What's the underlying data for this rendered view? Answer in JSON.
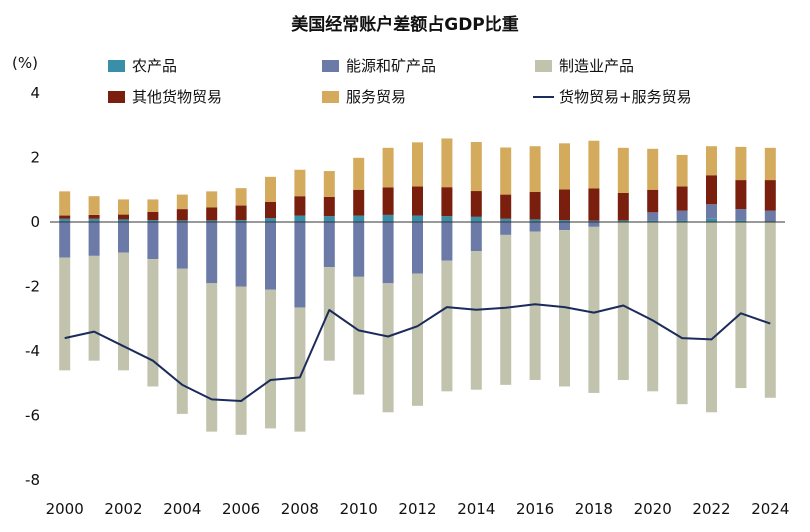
{
  "chart_data": {
    "type": "bar",
    "stacked": true,
    "title": "美国经常账户差额占GDP比重",
    "ylabel": "(%)",
    "xlabel": "",
    "ylim": [
      -8,
      4
    ],
    "yticks": [
      4,
      2,
      0,
      -2,
      -4,
      -6,
      -8
    ],
    "ytick_labels": [
      "4",
      "2",
      "0",
      "-2",
      "-4",
      "-6",
      "-8"
    ],
    "x_tick_labels": [
      "2000",
      "2002",
      "2004",
      "2006",
      "2008",
      "2010",
      "2012",
      "2014",
      "2016",
      "2018",
      "2020",
      "2022",
      "2024"
    ],
    "categories": [
      "2000",
      "2001",
      "2002",
      "2003",
      "2004",
      "2005",
      "2006",
      "2007",
      "2008",
      "2009",
      "2010",
      "2011",
      "2012",
      "2013",
      "2014",
      "2015",
      "2016",
      "2017",
      "2018",
      "2019",
      "2020",
      "2021",
      "2022",
      "2023",
      "2024"
    ],
    "legend": [
      {
        "name": "农产品",
        "color": "#3a8fa8"
      },
      {
        "name": "能源和矿产品",
        "color": "#6c7aa8"
      },
      {
        "name": "制造业产品",
        "color": "#c2c3ad"
      },
      {
        "name": "其他货物贸易",
        "color": "#7a1f0e"
      },
      {
        "name": "服务贸易",
        "color": "#d4aa5c"
      },
      {
        "name": "货物贸易+服务贸易",
        "color": "#1b2b5c"
      }
    ],
    "series": [
      {
        "name": "农产品",
        "kind": "bar",
        "color": "#3a8fa8",
        "values": [
          0.1,
          0.1,
          0.08,
          0.06,
          0.05,
          0.05,
          0.06,
          0.12,
          0.2,
          0.18,
          0.2,
          0.22,
          0.2,
          0.18,
          0.16,
          0.1,
          0.08,
          0.06,
          0.04,
          0.05,
          0.05,
          0.05,
          0.1,
          0.05,
          0.0
        ]
      },
      {
        "name": "能源和矿产品",
        "kind": "bar",
        "color": "#6c7aa8",
        "values": [
          -1.1,
          -1.05,
          -0.95,
          -1.15,
          -1.45,
          -1.9,
          -2.0,
          -2.1,
          -2.65,
          -1.4,
          -1.7,
          -1.9,
          -1.6,
          -1.2,
          -0.9,
          -0.4,
          -0.3,
          -0.25,
          -0.15,
          0.0,
          0.25,
          0.3,
          0.45,
          0.35,
          0.35
        ]
      },
      {
        "name": "制造业产品",
        "kind": "bar",
        "color": "#c2c3ad",
        "values": [
          -3.5,
          -3.25,
          -3.65,
          -3.95,
          -4.5,
          -4.6,
          -4.6,
          -4.3,
          -3.85,
          -2.9,
          -3.65,
          -4.0,
          -4.1,
          -4.05,
          -4.3,
          -4.65,
          -4.6,
          -4.85,
          -5.15,
          -4.9,
          -5.25,
          -5.65,
          -5.9,
          -5.15,
          -5.45
        ]
      },
      {
        "name": "其他货物贸易",
        "kind": "bar",
        "color": "#7a1f0e",
        "values": [
          0.1,
          0.12,
          0.15,
          0.25,
          0.35,
          0.4,
          0.45,
          0.5,
          0.6,
          0.6,
          0.8,
          0.85,
          0.9,
          0.9,
          0.8,
          0.75,
          0.85,
          0.95,
          1.0,
          0.85,
          0.7,
          0.75,
          0.9,
          0.9,
          0.95
        ]
      },
      {
        "name": "服务贸易",
        "kind": "bar",
        "color": "#d4aa5c",
        "values": [
          0.75,
          0.58,
          0.47,
          0.39,
          0.45,
          0.5,
          0.54,
          0.78,
          0.82,
          0.8,
          0.99,
          1.23,
          1.37,
          1.51,
          1.52,
          1.46,
          1.42,
          1.43,
          1.48,
          1.4,
          1.27,
          0.98,
          0.9,
          1.03,
          1.0
        ]
      },
      {
        "name": "货物贸易+服务贸易",
        "kind": "line",
        "color": "#1b2b5c",
        "values": [
          -3.6,
          -3.4,
          -3.85,
          -4.3,
          -5.05,
          -5.5,
          -5.55,
          -4.9,
          -4.82,
          -2.73,
          -3.36,
          -3.55,
          -3.23,
          -2.64,
          -2.72,
          -2.66,
          -2.55,
          -2.64,
          -2.81,
          -2.59,
          -3.05,
          -3.6,
          -3.64,
          -2.83,
          -3.15
        ]
      }
    ]
  }
}
